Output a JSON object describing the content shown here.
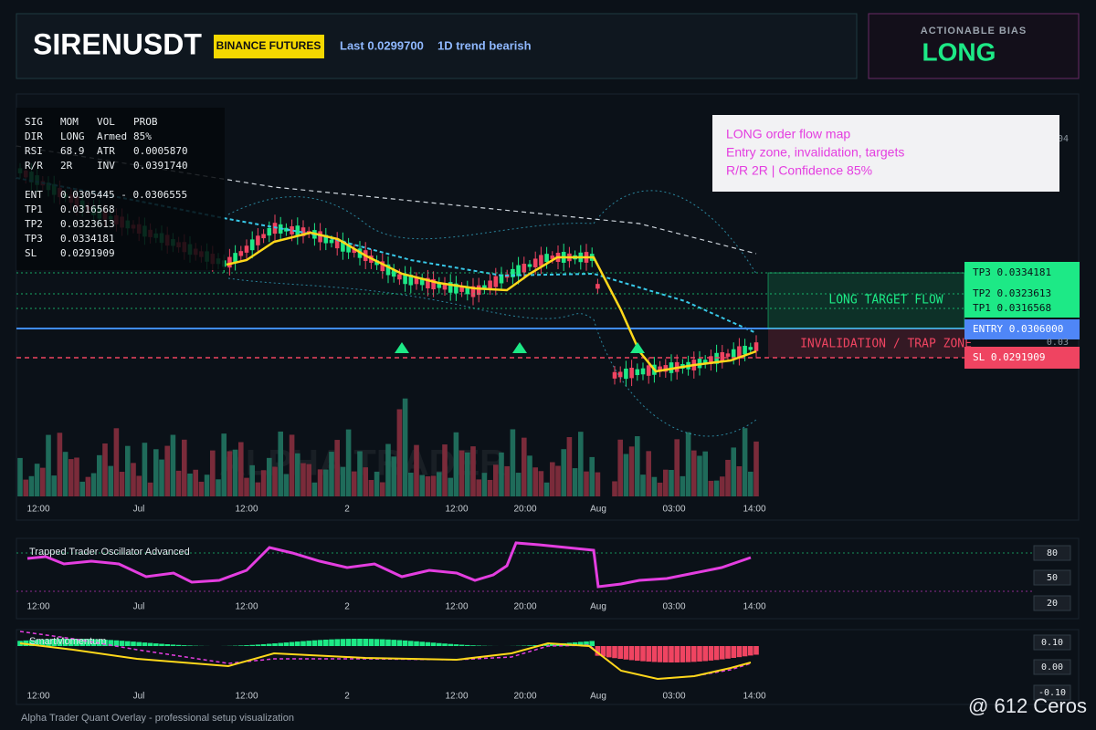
{
  "header": {
    "symbol": "SIRENUSDT",
    "exchange": "BINANCE FUTURES",
    "last": "Last 0.0299700",
    "trend": "1D trend bearish"
  },
  "bias": {
    "label": "ACTIONABLE BIAS",
    "value": "LONG"
  },
  "stats": {
    "rows": [
      [
        "SIG",
        "MOM",
        "VOL",
        "PROB"
      ],
      [
        "DIR",
        "LONG",
        "Armed",
        "85%"
      ],
      [
        "RSI",
        "68.9",
        "ATR",
        "0.0005870"
      ],
      [
        "R/R",
        "2R",
        "INV",
        "0.0391740"
      ]
    ],
    "levels": [
      [
        "ENT",
        "0.0305445 - 0.0306555"
      ],
      [
        "TP1",
        "0.0316568"
      ],
      [
        "TP2",
        "0.0323613"
      ],
      [
        "TP3",
        "0.0334181"
      ],
      [
        "SL",
        "0.0291909"
      ]
    ]
  },
  "callout": {
    "lines": [
      "LONG order flow map",
      "Entry zone, invalidation, targets",
      "R/R 2R | Confidence 85%"
    ]
  },
  "levels": {
    "tp3": "TP3 0.0334181",
    "tp2": "TP2 0.0323613",
    "tp1": "TP1 0.0316568",
    "entry": "ENTRY 0.0306000",
    "sl": "SL 0.0291909"
  },
  "zones": {
    "target": "LONG TARGET FLOW",
    "trap": "INVALIDATION / TRAP ZONE"
  },
  "price_axis": {
    "labels": [
      "04",
      "0.03"
    ]
  },
  "x_labels": [
    "12:00",
    "Jul",
    "12:00",
    "2",
    "12:00",
    "20:00",
    "Aug",
    "03:00",
    "14:00"
  ],
  "oscillator": {
    "title": "Trapped Trader Oscillator Advanced",
    "ticks": [
      "80",
      "50",
      "20"
    ]
  },
  "momentum": {
    "title": "SmartMomentum",
    "ticks": [
      "0.10",
      "0.00",
      "-0.10"
    ]
  },
  "watermark": "ALPHA TRADER",
  "footer": "Alpha Trader Quant Overlay - professional setup visualization",
  "attribution": "@ 612 Ceros"
}
